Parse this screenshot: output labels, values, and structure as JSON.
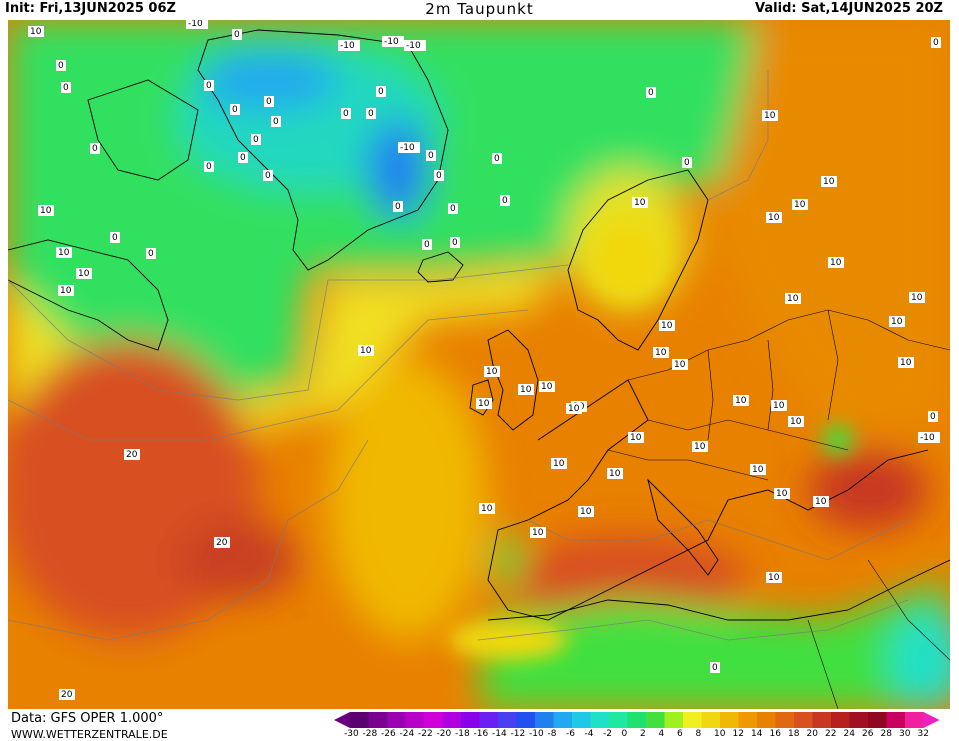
{
  "header": {
    "init": "Init: Fri,13JUN2025 06Z",
    "title": "2m Taupunkt",
    "valid": "Valid: Sat,14JUN2025 20Z"
  },
  "footer": {
    "data": "Data: GFS OPER 1.000°",
    "site": "WWW.WETTERZENTRALE.DE"
  },
  "colorbar": {
    "labels": [
      "-30",
      "-28",
      "-26",
      "-24",
      "-22",
      "-20",
      "-18",
      "-16",
      "-14",
      "-12",
      "-10",
      "-8",
      "-6",
      "-4",
      "-2",
      "0",
      "2",
      "4",
      "6",
      "8",
      "10",
      "12",
      "14",
      "16",
      "18",
      "20",
      "22",
      "24",
      "26",
      "28",
      "30",
      "32"
    ],
    "colors": [
      "#5a0070",
      "#7a0090",
      "#9a00b0",
      "#b800c8",
      "#d000d8",
      "#b000e0",
      "#8a00e8",
      "#6a20f0",
      "#4a40f0",
      "#2050f0",
      "#2080f0",
      "#20a8f0",
      "#20c8e8",
      "#20e0c8",
      "#20e8a0",
      "#20e070",
      "#40e040",
      "#a0f020",
      "#f0f020",
      "#f0d810",
      "#f0b800",
      "#f09800",
      "#e88000",
      "#e06810",
      "#d85020",
      "#c83820",
      "#b82020",
      "#a01020",
      "#900820",
      "#c80060",
      "#f020a0"
    ],
    "low_arrow": "#6a0080",
    "high_arrow": "#f020c0"
  },
  "contour_labels": [
    {
      "text": "10"
    },
    {
      "text": "-10"
    },
    {
      "text": "0"
    },
    {
      "text": "-10"
    },
    {
      "text": "-10"
    },
    {
      "text": "-10"
    },
    {
      "text": "0"
    },
    {
      "text": "0"
    },
    {
      "text": "0"
    },
    {
      "text": "0"
    },
    {
      "text": "0"
    },
    {
      "text": "0"
    },
    {
      "text": "0"
    },
    {
      "text": "0"
    },
    {
      "text": "0"
    },
    {
      "text": "0"
    },
    {
      "text": "0"
    },
    {
      "text": "0"
    },
    {
      "text": "-10"
    },
    {
      "text": "0"
    },
    {
      "text": "0"
    },
    {
      "text": "0"
    },
    {
      "text": "0"
    },
    {
      "text": "0"
    },
    {
      "text": "0"
    },
    {
      "text": "0"
    },
    {
      "text": "0"
    },
    {
      "text": "0"
    },
    {
      "text": "0"
    },
    {
      "text": "0"
    },
    {
      "text": "0"
    },
    {
      "text": "10"
    },
    {
      "text": "10"
    },
    {
      "text": "10"
    },
    {
      "text": "10"
    },
    {
      "text": "10"
    },
    {
      "text": "10"
    },
    {
      "text": "10"
    },
    {
      "text": "10"
    },
    {
      "text": "10"
    },
    {
      "text": "10"
    },
    {
      "text": "10"
    },
    {
      "text": "10"
    },
    {
      "text": "10"
    },
    {
      "text": "10"
    },
    {
      "text": "10"
    },
    {
      "text": "10"
    },
    {
      "text": "10"
    },
    {
      "text": "20"
    },
    {
      "text": "20"
    },
    {
      "text": "20"
    },
    {
      "text": "10"
    },
    {
      "text": "10"
    },
    {
      "text": "10"
    },
    {
      "text": "10"
    },
    {
      "text": "10"
    },
    {
      "text": "10"
    },
    {
      "text": "10"
    },
    {
      "text": "10"
    },
    {
      "text": "10"
    },
    {
      "text": "10"
    },
    {
      "text": "10"
    },
    {
      "text": "10"
    },
    {
      "text": "10"
    },
    {
      "text": "10"
    },
    {
      "text": "10"
    },
    {
      "text": "10"
    },
    {
      "text": "0"
    },
    {
      "text": "0"
    },
    {
      "text": "0"
    },
    {
      "text": "0"
    },
    {
      "text": "10"
    },
    {
      "text": "10"
    },
    {
      "text": "10"
    },
    {
      "text": "10"
    },
    {
      "text": "-10"
    },
    {
      "text": "0"
    },
    {
      "text": "10"
    }
  ]
}
